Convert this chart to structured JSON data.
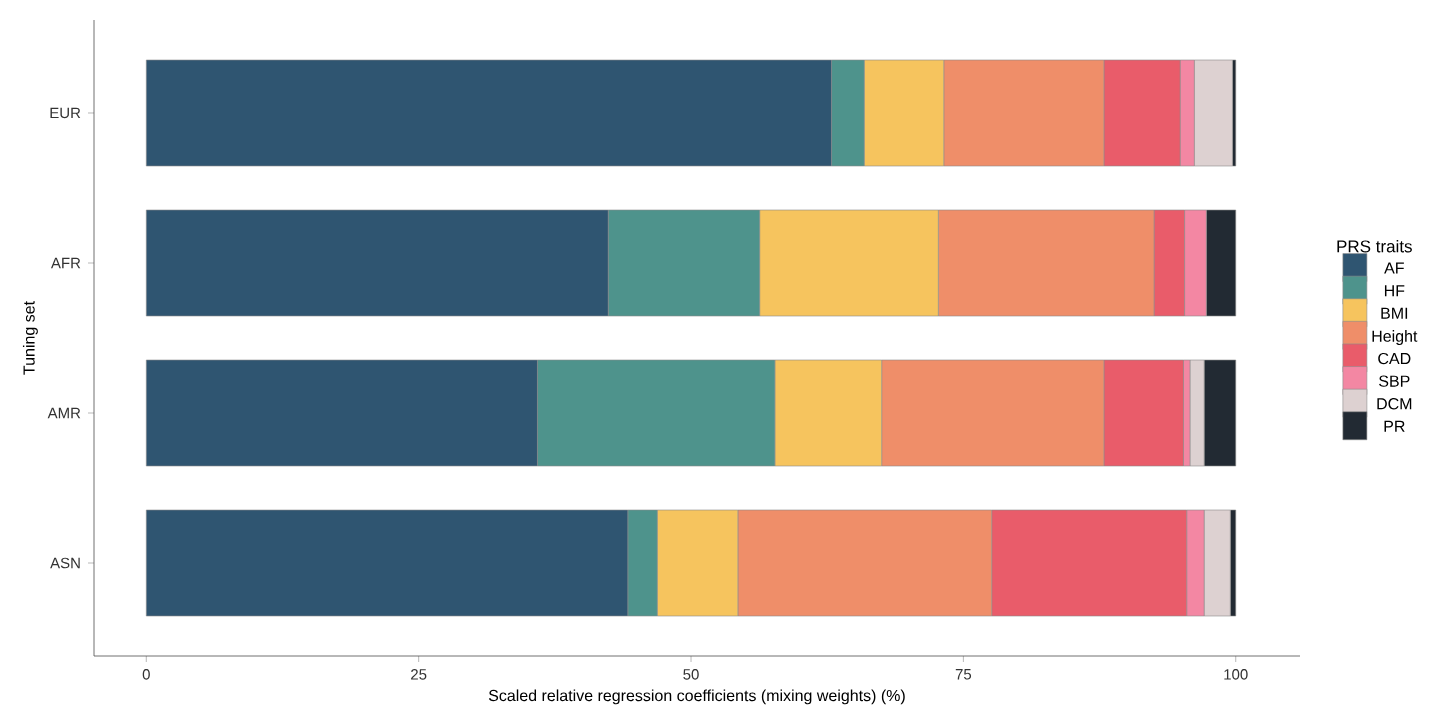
{
  "chart_data": {
    "type": "bar",
    "orientation": "horizontal",
    "stacked": true,
    "xlabel": "Scaled relative regression coefficients (mixing weights) (%)",
    "ylabel": "Tuning set",
    "legend_title": "PRS traits",
    "legend": "right",
    "categories": [
      "EUR",
      "AFR",
      "AMR",
      "ASN"
    ],
    "xlim": [
      -4.8,
      105.9
    ],
    "xticks": [
      0,
      25,
      50,
      75,
      100
    ],
    "series": [
      {
        "name": "AF",
        "color": "#2f5571",
        "values": [
          62.9,
          42.4,
          35.9,
          44.2
        ]
      },
      {
        "name": "HF",
        "color": "#4e938c",
        "values": [
          3.0,
          13.9,
          21.8,
          2.7
        ]
      },
      {
        "name": "BMI",
        "color": "#f6c45e",
        "values": [
          7.3,
          16.4,
          9.8,
          7.4
        ]
      },
      {
        "name": "Height",
        "color": "#ef8e69",
        "values": [
          14.7,
          19.8,
          20.4,
          23.3
        ]
      },
      {
        "name": "CAD",
        "color": "#e95c6a",
        "values": [
          7.0,
          2.8,
          7.3,
          17.9
        ]
      },
      {
        "name": "SBP",
        "color": "#f387a3",
        "values": [
          1.3,
          2.0,
          0.6,
          1.6
        ]
      },
      {
        "name": "DCM",
        "color": "#ddd1d1",
        "values": [
          3.5,
          0,
          1.3,
          2.4
        ]
      },
      {
        "name": "PR",
        "color": "#222a33",
        "values": [
          0.3,
          2.7,
          2.9,
          0.5
        ]
      }
    ]
  }
}
